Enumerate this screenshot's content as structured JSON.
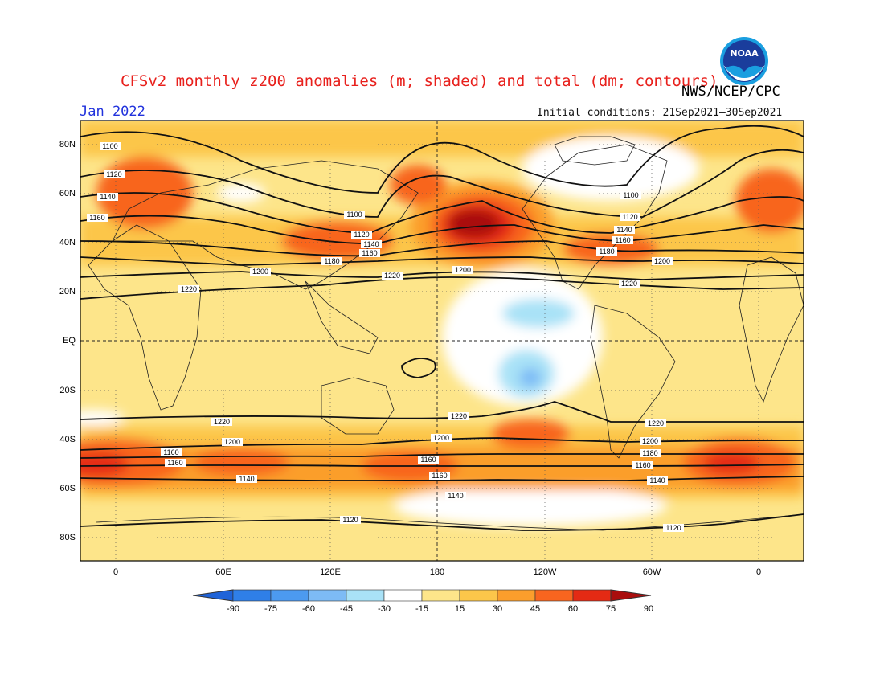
{
  "title": "CFSv2 monthly z200 anomalies (m; shaded) and total (dm; contours)",
  "agency": "NWS/NCEP/CPC",
  "logo_text": "NOAA",
  "month": "Jan 2022",
  "initial_conditions": "Initial conditions: 21Sep2021–30Sep2021",
  "lat_labels": [
    "80N",
    "60N",
    "40N",
    "20N",
    "EQ",
    "20S",
    "40S",
    "60S",
    "80S"
  ],
  "lon_labels": [
    "0",
    "60E",
    "120E",
    "180",
    "120W",
    "60W",
    "0"
  ],
  "colorbar": {
    "levels": [
      "-90",
      "-75",
      "-60",
      "-45",
      "-30",
      "-15",
      "15",
      "30",
      "45",
      "60",
      "75",
      "90"
    ],
    "colors": [
      "#1f63d8",
      "#2f7fe8",
      "#4c9af0",
      "#7dbbf5",
      "#a9e2f7",
      "#ffffff",
      "#fde58a",
      "#fcc64a",
      "#fb9e2c",
      "#f8651f",
      "#e42a14",
      "#a90d0d"
    ]
  },
  "contour_labels": [
    "1100",
    "1120",
    "1140",
    "1160",
    "1180",
    "1200",
    "1220"
  ],
  "colors": {
    "title": "#e8201c",
    "month": "#2233dd",
    "ocean_base": "#fde58a"
  }
}
